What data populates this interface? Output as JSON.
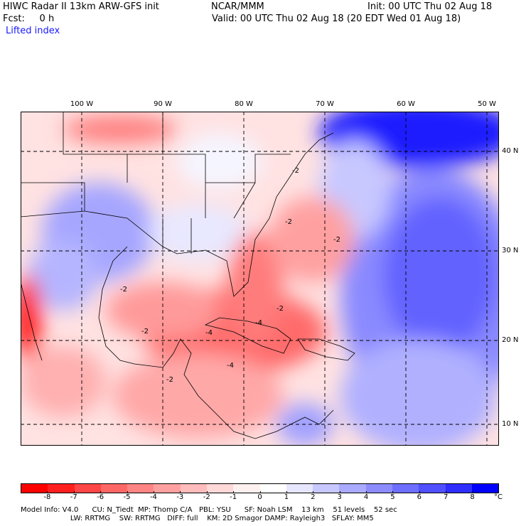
{
  "header": {
    "title": "HIWC Radar II 13km ARW-GFS init",
    "source": "NCAR/MMM",
    "fcst": "Fcst:     0 h",
    "init": "Init: 00 UTC Thu 02 Aug 18",
    "valid": "Valid: 00 UTC Thu 02 Aug 18 (20 EDT Wed 01 Aug 18)",
    "field": "Lifted index"
  },
  "map": {
    "lon_labels": [
      "100 W",
      "90 W",
      "80 W",
      "70 W",
      "60 W",
      "50 W"
    ],
    "lat_labels": [
      "40 N",
      "30 N",
      "20 N",
      "10 N"
    ],
    "contour_labels": [
      "-2",
      "-2",
      "-2",
      "-2",
      "-2",
      "-2",
      "-4",
      "-4",
      "-2",
      "-4"
    ]
  },
  "colorbar": {
    "labels": [
      "-8",
      "-7",
      "-6",
      "-5",
      "-4",
      "-3",
      "-2",
      "-1",
      "0",
      "1",
      "2",
      "3",
      "4",
      "5",
      "6",
      "7",
      "8"
    ],
    "unit": "°C",
    "colors": [
      "#ff0000",
      "#ff1f1f",
      "#ff4646",
      "#ff6666",
      "#ff8585",
      "#ffa0a0",
      "#ffbcbc",
      "#ffd8d8",
      "#fff0f0",
      "#ffffff",
      "#e6e6ff",
      "#c8c8ff",
      "#aaaaff",
      "#8c8cff",
      "#6e6eff",
      "#5050ff",
      "#2e2eff",
      "#0000ff"
    ]
  },
  "footer": {
    "line1": "Model Info: V4.0      CU: N_Tiedt  MP: Thomp C/A   PBL: YSU      SF: Noah LSM    13 km    51 levels    52 sec",
    "line2": "                      LW: RRTMG    SW: RRTMG   DIFF: full    KM: 2D Smagor DAMP: Rayleigh3   SFLAY: MM5"
  }
}
